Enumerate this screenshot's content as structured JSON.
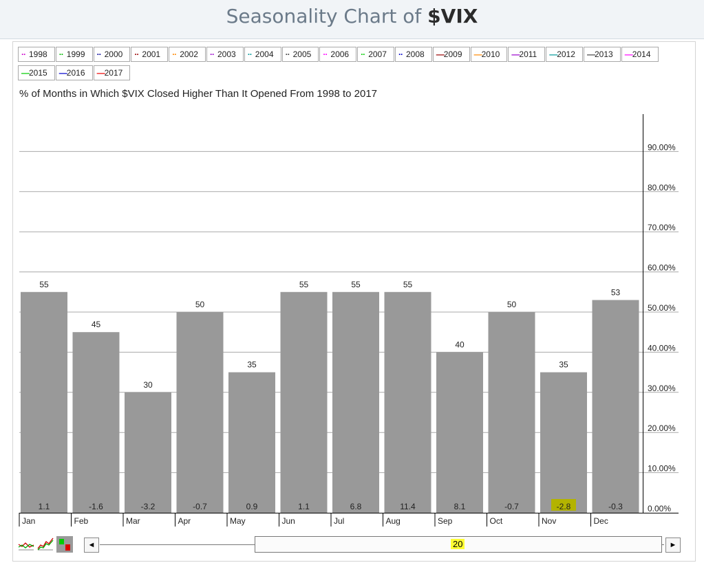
{
  "header": {
    "prefix": "Seasonality Chart of ",
    "symbol": "$VIX"
  },
  "legend": [
    {
      "label": "1998",
      "color": "#cc00cc",
      "style": "dotted"
    },
    {
      "label": "1999",
      "color": "#00bb00",
      "style": "dotted"
    },
    {
      "label": "2000",
      "color": "#000099",
      "style": "dotted"
    },
    {
      "label": "2001",
      "color": "#990000",
      "style": "dotted"
    },
    {
      "label": "2002",
      "color": "#ff8800",
      "style": "dotted"
    },
    {
      "label": "2003",
      "color": "#9900cc",
      "style": "dotted"
    },
    {
      "label": "2004",
      "color": "#009999",
      "style": "dotted"
    },
    {
      "label": "2005",
      "color": "#444444",
      "style": "dotted"
    },
    {
      "label": "2006",
      "color": "#ff00ff",
      "style": "dotted"
    },
    {
      "label": "2007",
      "color": "#00cc00",
      "style": "dotted"
    },
    {
      "label": "2008",
      "color": "#0000cc",
      "style": "dotted"
    },
    {
      "label": "2009",
      "color": "#990000",
      "style": "solid"
    },
    {
      "label": "2010",
      "color": "#ff8800",
      "style": "solid"
    },
    {
      "label": "2011",
      "color": "#9900cc",
      "style": "solid"
    },
    {
      "label": "2012",
      "color": "#009999",
      "style": "solid"
    },
    {
      "label": "2013",
      "color": "#444444",
      "style": "solid"
    },
    {
      "label": "2014",
      "color": "#ff00ff",
      "style": "solid"
    },
    {
      "label": "2015",
      "color": "#00cc00",
      "style": "solid"
    },
    {
      "label": "2016",
      "color": "#0000cc",
      "style": "solid"
    },
    {
      "label": "2017",
      "color": "#ee0000",
      "style": "solid"
    }
  ],
  "subtitle": "% of Months in Which $VIX Closed Higher Than It Opened From 1998 to 2017",
  "chart_data": {
    "type": "bar",
    "categories": [
      "Jan",
      "Feb",
      "Mar",
      "Apr",
      "May",
      "Jun",
      "Jul",
      "Aug",
      "Sep",
      "Oct",
      "Nov",
      "Dec"
    ],
    "values": [
      55,
      45,
      30,
      50,
      35,
      55,
      55,
      55,
      40,
      50,
      35,
      53
    ],
    "bottom_labels": [
      "1.1",
      "-1.6",
      "-3.2",
      "-0.7",
      "0.9",
      "1.1",
      "6.8",
      "11.4",
      "8.1",
      "-0.7",
      "-2.8",
      "-0.3"
    ],
    "highlighted_bottom_label": "Nov",
    "ylim": [
      0,
      100
    ],
    "yticks": [
      "0.00%",
      "10.00%",
      "20.00%",
      "30.00%",
      "40.00%",
      "50.00%",
      "60.00%",
      "70.00%",
      "80.00%",
      "90.00%"
    ],
    "grid": true,
    "bar_color": "#999999",
    "highlight_color": "#b3b300"
  },
  "scrollbar": {
    "value": "20",
    "left_arrow": "◄",
    "right_arrow": "►"
  },
  "controls": [
    "line-chart-icon",
    "performance-chart-icon",
    "bar-chart-icon"
  ]
}
